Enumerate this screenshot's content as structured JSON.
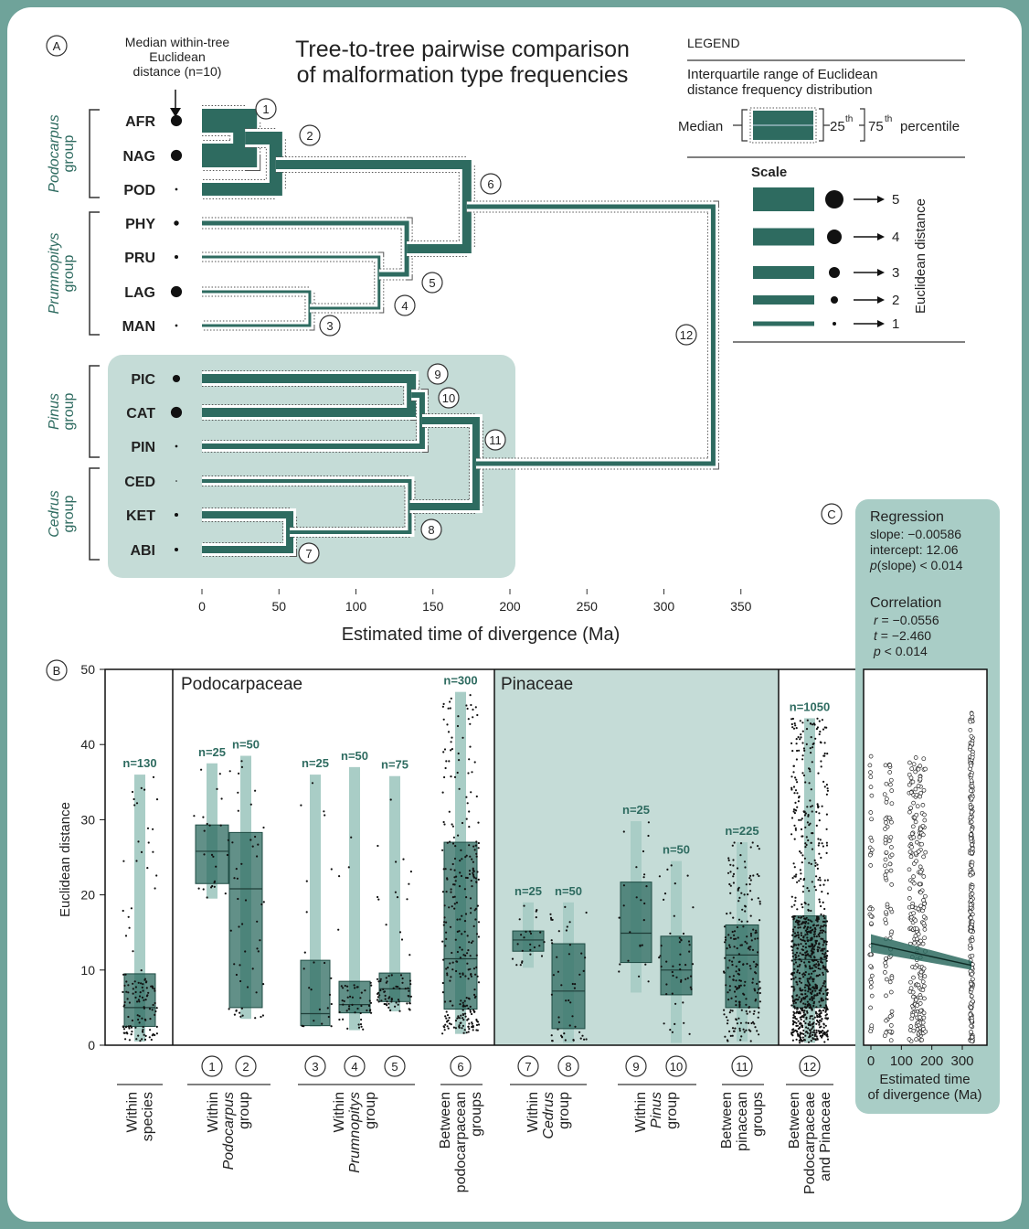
{
  "panel_labels": {
    "a": "A",
    "b": "B",
    "c": "C"
  },
  "tree": {
    "title_line1": "Tree-to-tree pairwise comparison",
    "title_line2": "of malformation type frequencies",
    "median_note": [
      "Median within-tree",
      "Euclidean",
      "distance (n=10)"
    ],
    "groups": [
      "Podocarpus",
      "Prumnopitys",
      "Pinus",
      "Cedrus"
    ],
    "group_word": "group",
    "taxa": [
      "AFR",
      "NAG",
      "POD",
      "PHY",
      "PRU",
      "LAG",
      "MAN",
      "PIC",
      "CAT",
      "PIN",
      "CED",
      "KET",
      "ABI"
    ],
    "taxa_dot_distance": [
      4.5,
      4.5,
      1,
      2,
      1.5,
      4.5,
      1,
      3,
      4.5,
      1,
      0.5,
      1.5,
      1.5
    ],
    "node_labels": [
      "1",
      "2",
      "3",
      "4",
      "5",
      "6",
      "7",
      "8",
      "9",
      "10",
      "11",
      "12"
    ],
    "xlabel": "Estimated time of divergence (Ma)",
    "xticks": [
      "0",
      "50",
      "100",
      "150",
      "200",
      "250",
      "300",
      "350"
    ]
  },
  "legend": {
    "title": "LEGEND",
    "desc_line1": "Interquartile range of Euclidean",
    "desc_line2": "distance frequency distribution",
    "median_label": "Median",
    "p25": "25",
    "p75": "75",
    "th": "th",
    "percentile": "percentile",
    "scale_title": "Scale",
    "scale_values": [
      "5",
      "4",
      "3",
      "2",
      "1"
    ],
    "scale_axis_label": "Euclidean distance"
  },
  "chart_data": [
    {
      "type": "box",
      "panel": "B",
      "ylabel": "Euclidean distance",
      "ylim": [
        0,
        50
      ],
      "yticks": [
        "0",
        "10",
        "20",
        "30",
        "40",
        "50"
      ],
      "section_labels": [
        "Podocarpaceae",
        "Pinaceae"
      ],
      "comparisons": [
        {
          "id": "",
          "n": "n=130",
          "q1": 2.5,
          "median": 5,
          "q3": 9.5,
          "min": 0.5,
          "max": 36
        },
        {
          "id": "1",
          "n": "n=25",
          "q1": 21.5,
          "median": 25.8,
          "q3": 29.3,
          "min": 19.5,
          "max": 37.5
        },
        {
          "id": "2",
          "n": "n=50",
          "q1": 5,
          "median": 20.8,
          "q3": 28.3,
          "min": 3.5,
          "max": 38.5
        },
        {
          "id": "3",
          "n": "n=25",
          "q1": 2.6,
          "median": 4.2,
          "q3": 11.3,
          "min": 2.5,
          "max": 36
        },
        {
          "id": "4",
          "n": "n=50",
          "q1": 4.3,
          "median": 5.4,
          "q3": 8.5,
          "min": 2,
          "max": 37
        },
        {
          "id": "5",
          "n": "n=75",
          "q1": 5.8,
          "median": 7.5,
          "q3": 9.6,
          "min": 4.5,
          "max": 35.8
        },
        {
          "id": "6",
          "n": "n=300",
          "q1": 4.8,
          "median": 11.5,
          "q3": 27,
          "min": 1.5,
          "max": 47
        },
        {
          "id": "7",
          "n": "n=25",
          "q1": 12.5,
          "median": 14,
          "q3": 15.2,
          "min": 10.3,
          "max": 19
        },
        {
          "id": "8",
          "n": "n=50",
          "q1": 2.2,
          "median": 7.2,
          "q3": 13.5,
          "min": 0.3,
          "max": 19
        },
        {
          "id": "9",
          "n": "n=25",
          "q1": 11,
          "median": 14.9,
          "q3": 21.7,
          "min": 7,
          "max": 29.8
        },
        {
          "id": "10",
          "n": "n=50",
          "q1": 6.7,
          "median": 10,
          "q3": 14.5,
          "min": 0.3,
          "max": 24.5
        },
        {
          "id": "11",
          "n": "n=225",
          "q1": 5,
          "median": 12,
          "q3": 16,
          "min": 0.5,
          "max": 27
        },
        {
          "id": "12",
          "n": "n=1050",
          "q1": 5,
          "median": 11.4,
          "q3": 17.2,
          "min": 0.3,
          "max": 43.5
        }
      ],
      "category_labels": [
        {
          "ids": [],
          "lines": [
            {
              "t": "Within",
              "i": false
            },
            {
              "t": "species",
              "i": false
            }
          ]
        },
        {
          "ids": [
            "1",
            "2"
          ],
          "lines": [
            {
              "t": "Within",
              "i": false
            },
            {
              "t": "Podocarpus",
              "i": true
            },
            {
              "t": "group",
              "i": false
            }
          ]
        },
        {
          "ids": [
            "3",
            "4",
            "5"
          ],
          "lines": [
            {
              "t": "Within",
              "i": false
            },
            {
              "t": "Prumnopitys",
              "i": true
            },
            {
              "t": "group",
              "i": false
            }
          ]
        },
        {
          "ids": [
            "6"
          ],
          "lines": [
            {
              "t": "Between",
              "i": false
            },
            {
              "t": "podocarpacean",
              "i": false
            },
            {
              "t": "groups",
              "i": false
            }
          ]
        },
        {
          "ids": [
            "7",
            "8"
          ],
          "lines": [
            {
              "t": "Within",
              "i": false
            },
            {
              "t": "Cedrus",
              "i": true
            },
            {
              "t": "group",
              "i": false
            }
          ]
        },
        {
          "ids": [
            "9",
            "10"
          ],
          "lines": [
            {
              "t": "Within",
              "i": false
            },
            {
              "t": "Pinus",
              "i": true
            },
            {
              "t": "group",
              "i": false
            }
          ]
        },
        {
          "ids": [
            "11"
          ],
          "lines": [
            {
              "t": "Between",
              "i": false
            },
            {
              "t": "pinacean",
              "i": false
            },
            {
              "t": "groups",
              "i": false
            }
          ]
        },
        {
          "ids": [
            "12"
          ],
          "lines": [
            {
              "t": "Between",
              "i": false
            },
            {
              "t": "Podocarpaceae",
              "i": false
            },
            {
              "t": "and Pinaceae",
              "i": false
            }
          ]
        }
      ]
    },
    {
      "type": "scatter",
      "panel": "C",
      "xlabel_line1": "Estimated time",
      "xlabel_line2": "of divergence (Ma)",
      "xticks": [
        "0",
        "100",
        "200",
        "300"
      ],
      "xlim": [
        0,
        345
      ],
      "ylim": [
        0,
        50
      ],
      "x_groups": [
        0,
        50,
        65,
        130,
        140,
        150,
        160,
        165,
        175,
        330
      ],
      "regression": {
        "title": "Regression",
        "slope_text": "slope: −0.00586",
        "intercept_text": "intercept: 12.06",
        "p_var": "p",
        "p_text": "(slope) < 0.014",
        "slope": -0.00586,
        "intercept": 12.06
      },
      "correlation": {
        "title": "Correlation",
        "r_var": "r",
        "r_text": " = −0.0556",
        "t_var": "t",
        "t_text": " = −2.460",
        "p_var": "p",
        "p_text": " < 0.014"
      }
    }
  ],
  "colors": {
    "dark_teal": "#2e6b60",
    "light_teal": "#a9cdc6",
    "panel_teal": "#c5dcd7",
    "frame": "#6fa39a"
  }
}
